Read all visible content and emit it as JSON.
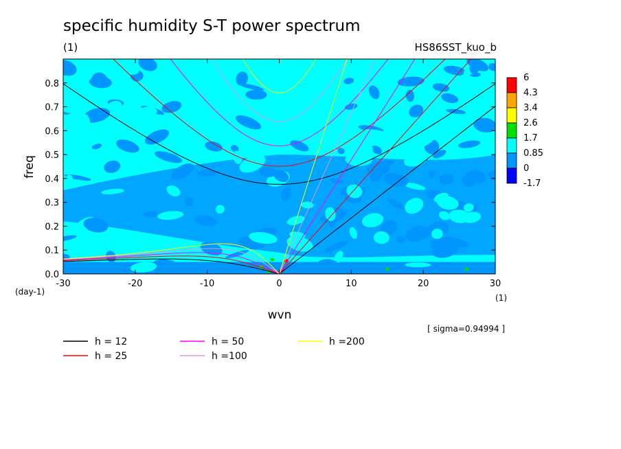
{
  "header": {
    "title": "specific humidity S-T power spectrum",
    "units_left": "(1)",
    "experiment": "HS86SST_kuo_b"
  },
  "colorbar": {
    "levels": [
      "6",
      "4.3",
      "3.4",
      "2.6",
      "1.7",
      "0.85",
      "0",
      "-1.7"
    ],
    "colors": [
      "#ff0000",
      "#ffa500",
      "#ffff00",
      "#00e000",
      "#00ffff",
      "#0096ff",
      "#0000ff"
    ]
  },
  "chart_data": {
    "type": "heatmap",
    "title": "specific humidity S-T power spectrum",
    "xlabel": "wvn",
    "ylabel": "freq",
    "x_unit": "(1)",
    "y_unit": "(day-1)",
    "xlim": [
      -30,
      30
    ],
    "ylim": [
      0,
      0.9
    ],
    "x_ticks": [
      "-30",
      "-20",
      "-10",
      "0",
      "10",
      "20",
      "30"
    ],
    "y_ticks": [
      "0.0",
      "0.1",
      "0.2",
      "0.3",
      "0.4",
      "0.5",
      "0.6",
      "0.7",
      "0.8"
    ],
    "field_description_levels": [
      "-1.7",
      "0",
      "0.85",
      "1.7",
      "2.6",
      "3.4",
      "4.3",
      "6"
    ],
    "dispersion_curves": [
      {
        "name": "h = 12",
        "color": "#000000",
        "h": 12
      },
      {
        "name": "h = 25",
        "color": "#ff0000",
        "h": 25
      },
      {
        "name": "h = 50",
        "color": "#ff00ff",
        "h": 50
      },
      {
        "name": "h =100",
        "color": "#dd99dd",
        "h": 100
      },
      {
        "name": "h =200",
        "color": "#ffff00",
        "h": 200
      }
    ],
    "annotation": "[ sigma=0.94994 ]"
  }
}
